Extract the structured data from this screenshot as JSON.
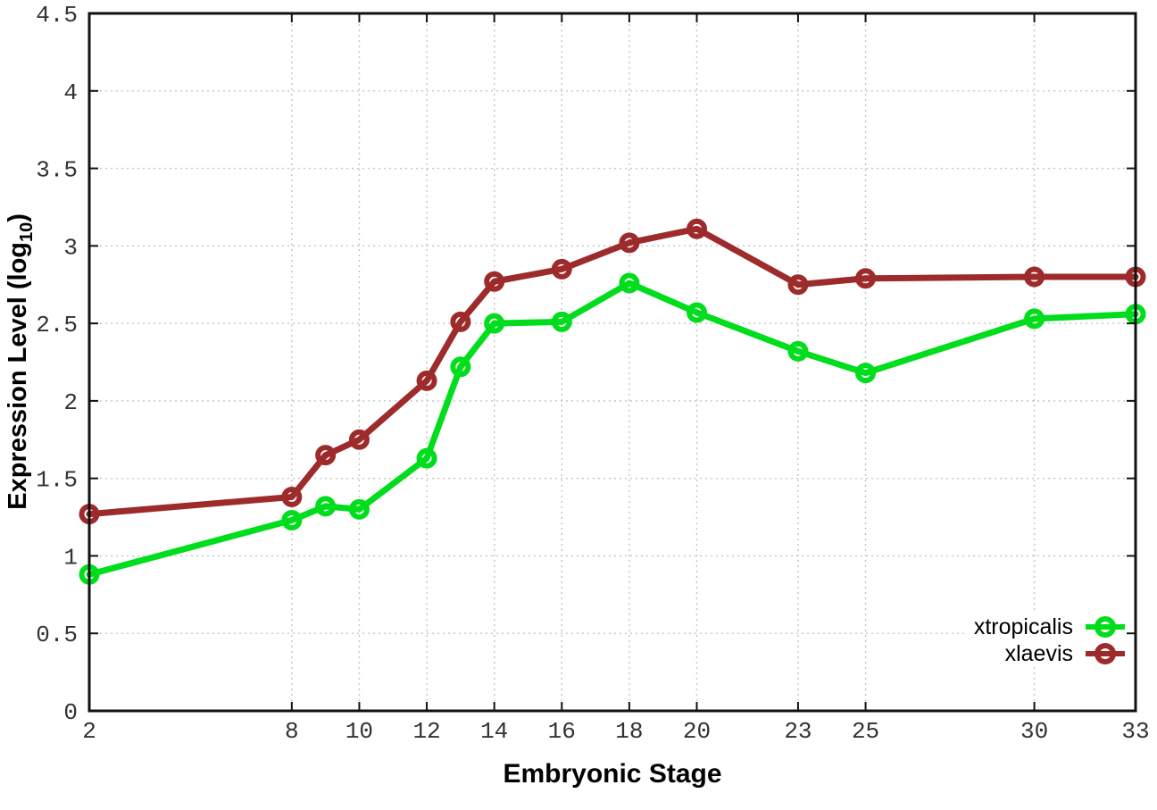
{
  "chart_data": {
    "type": "line",
    "title": "",
    "xlabel": "Embryonic Stage",
    "ylabel": {
      "prefix": "Expression Level (log",
      "sub": "10",
      "suffix": ")"
    },
    "x": [
      2,
      8,
      9,
      10,
      12,
      13,
      14,
      16,
      18,
      20,
      23,
      25,
      30,
      33
    ],
    "xlim": [
      2,
      33
    ],
    "ylim": [
      0,
      4.5
    ],
    "x_ticks": [
      2,
      8,
      10,
      12,
      14,
      16,
      18,
      20,
      23,
      25,
      30,
      33
    ],
    "x_tick_labels": [
      "2",
      "8",
      "10",
      "12",
      "14",
      "16",
      "18",
      "20",
      "23",
      "25",
      "30",
      "33"
    ],
    "y_ticks": [
      0,
      0.5,
      1,
      1.5,
      2,
      2.5,
      3,
      3.5,
      4,
      4.5
    ],
    "y_tick_labels": [
      "0",
      "0.5",
      "1",
      "1.5",
      "2",
      "2.5",
      "3",
      "3.5",
      "4",
      "4.5"
    ],
    "grid": true,
    "legend_position": "bottom-right",
    "series": [
      {
        "name": "xtropicalis",
        "color": "#00dd1c",
        "values": [
          0.88,
          1.23,
          1.32,
          1.3,
          1.63,
          2.22,
          2.5,
          2.51,
          2.76,
          2.57,
          2.32,
          2.18,
          2.53,
          2.56
        ]
      },
      {
        "name": "xlaevis",
        "color": "#9e2b2b",
        "values": [
          1.27,
          1.38,
          1.65,
          1.75,
          2.13,
          2.51,
          2.77,
          2.85,
          3.02,
          3.11,
          2.75,
          2.79,
          2.8,
          2.8
        ]
      }
    ]
  },
  "style_colors": {
    "grid": "#c4c4c4",
    "border": "#111111",
    "tick_text": "#333333"
  }
}
